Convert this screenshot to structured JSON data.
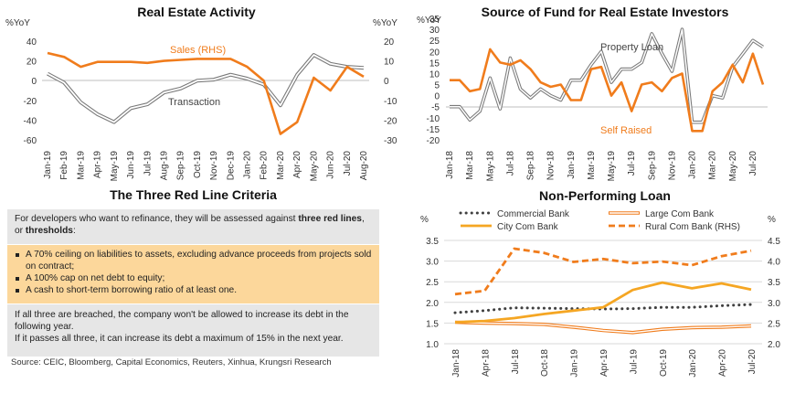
{
  "chart_data": [
    {
      "type": "line",
      "title": "Real Estate Activity",
      "left_unit": "%YoY",
      "right_unit": "%YoY",
      "categories": [
        "Jan-19",
        "Feb-19",
        "Mar-19",
        "Apr-19",
        "May-19",
        "Jun-19",
        "Jul-19",
        "Aug-19",
        "Sep-19",
        "Oct-19",
        "Nov-19",
        "Dec-19",
        "Jan-20",
        "Feb-20",
        "Mar-20",
        "Apr-20",
        "May-20",
        "Jun-20",
        "Jul-20",
        "Aug-20"
      ],
      "ylim": [
        -60,
        40
      ],
      "y_ticks": [
        -60,
        -40,
        -20,
        0,
        20,
        40
      ],
      "y2lim": [
        -30,
        20
      ],
      "y2_ticks": [
        -30,
        -20,
        -10,
        0,
        10,
        20
      ],
      "series": [
        {
          "name": "Sales (RHS)",
          "axis": "right",
          "color": "#f07c1c",
          "values": [
            14,
            12,
            7,
            9.5,
            9.5,
            9.5,
            9,
            10,
            10.5,
            11,
            11,
            11,
            7,
            0,
            -27,
            -21,
            1.5,
            -5,
            7,
            2
          ]
        },
        {
          "name": "Transaction",
          "axis": "left",
          "color": "#8f8f8f",
          "values": [
            7,
            -2,
            -22,
            -34,
            -42,
            -28,
            -24,
            -12,
            -8,
            0,
            1,
            6,
            2,
            -4,
            -25,
            6,
            26,
            17,
            14,
            13
          ]
        }
      ]
    },
    {
      "type": "line",
      "title": "Source of Fund for Real Estate Investors",
      "left_unit": "%YoY",
      "categories": [
        "Jan-18",
        "Feb-18",
        "Mar-18",
        "Apr-18",
        "May-18",
        "Jun-18",
        "Jul-18",
        "Aug-18",
        "Sep-18",
        "Oct-18",
        "Nov-18",
        "Dec-18",
        "Jan-19",
        "Feb-19",
        "Mar-19",
        "Apr-19",
        "May-19",
        "Jun-19",
        "Jul-19",
        "Aug-19",
        "Sep-19",
        "Oct-19",
        "Nov-19",
        "Dec-19",
        "Jan-20",
        "Feb-20",
        "Mar-20",
        "Apr-20",
        "May-20",
        "Jun-20",
        "Jul-20",
        "Aug-20"
      ],
      "x_labels": [
        "Jan-18",
        "",
        "Mar-18",
        "",
        "May-18",
        "",
        "Jul-18",
        "",
        "Sep-18",
        "",
        "Nov-18",
        "",
        "Jan-19",
        "",
        "Mar-19",
        "",
        "May-19",
        "",
        "Jul-19",
        "",
        "Sep-19",
        "",
        "Nov-19",
        "",
        "Jan-20",
        "",
        "Mar-20",
        "",
        "May-20",
        "",
        "Jul-20",
        ""
      ],
      "ylim": [
        -20,
        35
      ],
      "y_ticks": [
        -20,
        -15,
        -10,
        -5,
        0,
        5,
        10,
        15,
        20,
        25,
        30,
        35
      ],
      "series": [
        {
          "name": "Property Loan",
          "color": "#8f8f8f",
          "values": [
            -5,
            -5,
            -11,
            -7,
            8,
            -6,
            17,
            3,
            -1,
            3,
            0,
            -2,
            7,
            7,
            14,
            20,
            6,
            12,
            12,
            15,
            28,
            19,
            11,
            30,
            -12,
            -12,
            0,
            -1,
            13,
            19,
            25,
            22
          ]
        },
        {
          "name": "Self Raised",
          "color": "#f07c1c",
          "values": [
            7,
            7,
            2,
            3,
            21,
            15,
            14,
            16,
            12,
            6,
            4,
            5,
            -2,
            -2,
            12,
            13,
            0,
            6,
            -7,
            5,
            6,
            2,
            8,
            10,
            -16,
            -16,
            2,
            6,
            14,
            6,
            19,
            5
          ]
        }
      ]
    },
    {
      "type": "line",
      "title": "Non-Performing Loan",
      "left_unit": "%",
      "right_unit": "%",
      "categories": [
        "Jan-18",
        "Apr-18",
        "Jul-18",
        "Oct-18",
        "Jan-19",
        "Apr-19",
        "Jul-19",
        "Oct-19",
        "Jan-20",
        "Apr-20",
        "Jul-20"
      ],
      "ylim": [
        1.0,
        3.5
      ],
      "y_ticks": [
        1.0,
        1.5,
        2.0,
        2.5,
        3.0,
        3.5
      ],
      "y2lim": [
        2.0,
        4.5
      ],
      "y2_ticks": [
        2.0,
        2.5,
        3.0,
        3.5,
        4.0,
        4.5
      ],
      "series": [
        {
          "name": "Commercial Bank",
          "axis": "left",
          "style": "dotted",
          "color": "#404040",
          "values": [
            1.75,
            1.8,
            1.87,
            1.86,
            1.85,
            1.84,
            1.85,
            1.88,
            1.88,
            1.92,
            1.95
          ]
        },
        {
          "name": "Large Com Bank",
          "axis": "left",
          "style": "outlined",
          "color": "#f07c1c",
          "values": [
            1.52,
            1.5,
            1.49,
            1.47,
            1.4,
            1.32,
            1.27,
            1.35,
            1.39,
            1.4,
            1.43
          ]
        },
        {
          "name": "City Com Bank",
          "axis": "left",
          "style": "solid",
          "color": "#f5a623",
          "values": [
            1.52,
            1.55,
            1.62,
            1.72,
            1.8,
            1.88,
            2.3,
            2.48,
            2.34,
            2.46,
            2.31
          ]
        },
        {
          "name": "Rural Com Bank (RHS)",
          "axis": "right",
          "style": "dashed",
          "color": "#f07c1c",
          "values": [
            3.2,
            3.28,
            4.3,
            4.2,
            3.98,
            4.05,
            3.95,
            3.99,
            3.9,
            4.12,
            4.25
          ]
        }
      ]
    }
  ],
  "red_line": {
    "title": "The Three Red Line Criteria",
    "intro_a": "For developers who want to refinance, they will be assessed against ",
    "intro_b": "three red lines",
    "intro_c": ", or ",
    "intro_d": "thresholds",
    "intro_e": ":",
    "items": [
      "A 70% ceiling on liabilities to assets, excluding advance proceeds from projects sold on contract;",
      "A 100% cap on net debt to equity;",
      "A cash to short-term borrowing ratio of at least one."
    ],
    "outro_1": "If all three are breached, the company won't be allowed to increase its debt in the following year.",
    "outro_2": "If it passes all three, it can increase its debt a maximum of 15% in the next year."
  },
  "source": "Source: CEIC, Bloomberg, Capital Economics, Reuters, Xinhua, Krungsri Research"
}
